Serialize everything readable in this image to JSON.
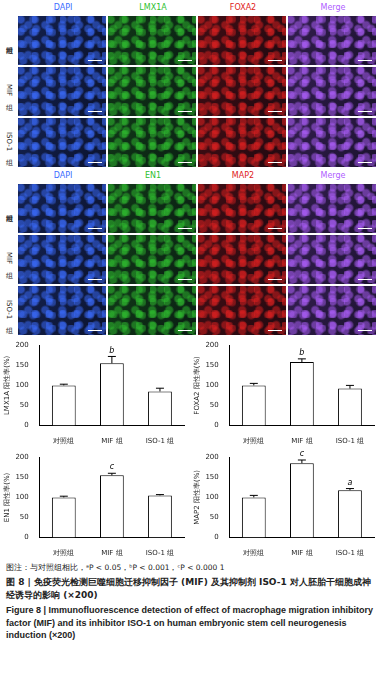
{
  "image_panels": [
    {
      "columns": [
        {
          "label": "DAPI",
          "color": "#3b6cff"
        },
        {
          "label": "LMX1A",
          "color": "#2fbf2f"
        },
        {
          "label": "FOXA2",
          "color": "#e02020"
        },
        {
          "label": "Merge",
          "color": "#b060ff"
        }
      ],
      "rows": [
        "对照组",
        "MIF 组",
        "ISO-1 组"
      ]
    },
    {
      "columns": [
        {
          "label": "DAPI",
          "color": "#3b6cff"
        },
        {
          "label": "EN1",
          "color": "#2fbf2f"
        },
        {
          "label": "MAP2",
          "color": "#e02020"
        },
        {
          "label": "Merge",
          "color": "#b060ff"
        }
      ],
      "rows": [
        "对照组",
        "MIF 组",
        "ISO-1 组"
      ]
    }
  ],
  "chart_data": [
    {
      "type": "bar",
      "y_label": "LMX1A 阳性率(%)",
      "categories": [
        "对照组",
        "MIF 组",
        "ISO-1 组"
      ],
      "values": [
        100,
        155,
        85
      ],
      "errors": [
        3,
        17,
        8
      ],
      "significance": [
        null,
        "b",
        null
      ],
      "color": "#ffffff",
      "ylim": [
        0,
        200
      ],
      "yticks": [
        0,
        50,
        100,
        150,
        200
      ],
      "grid": false
    },
    {
      "type": "bar",
      "y_label": "FOXA2 阳性率(%)",
      "categories": [
        "对照组",
        "MIF 组",
        "ISO-1 组"
      ],
      "values": [
        100,
        158,
        92
      ],
      "errors": [
        5,
        8,
        8
      ],
      "significance": [
        null,
        "b",
        null
      ],
      "color": "#ffffff",
      "ylim": [
        0,
        200
      ],
      "yticks": [
        0,
        50,
        100,
        150,
        200
      ],
      "grid": false
    },
    {
      "type": "bar",
      "y_label": "EN1 阳性率(%)",
      "categories": [
        "对照组",
        "MIF 组",
        "ISO-1 组"
      ],
      "values": [
        100,
        155,
        105
      ],
      "errors": [
        3,
        5,
        2
      ],
      "significance": [
        null,
        "c",
        null
      ],
      "color": "#ffffff",
      "ylim": [
        0,
        200
      ],
      "yticks": [
        0,
        50,
        100,
        150,
        200
      ],
      "grid": false
    },
    {
      "type": "bar",
      "y_label": "MAP2 阳性率(%)",
      "categories": [
        "对照组",
        "MIF 组",
        "ISO-1 组"
      ],
      "values": [
        100,
        185,
        118
      ],
      "errors": [
        5,
        8,
        4
      ],
      "significance": [
        null,
        "c",
        "a"
      ],
      "color": "#ffffff",
      "ylim": [
        0,
        200
      ],
      "yticks": [
        0,
        50,
        100,
        150,
        200
      ],
      "grid": false
    }
  ],
  "footnote": "图注：与对照组相比，ᵃP < 0.05，ᵇP < 0.001，ᶜP < 0.000 1",
  "caption_zh": "图 8 | 免疫荧光检测巨噬细胞迁移抑制因子 (MIF) 及其抑制剂 ISO-1 对人胚胎干细胞成神经诱导的影响 (×200)",
  "caption_en": "Figure 8 | Immunofluorescence detection of effect of macrophage migration inhibitory factor (MIF) and its inhibitor ISO-1 on human embryonic stem cell neurogenesis induction (×200)"
}
